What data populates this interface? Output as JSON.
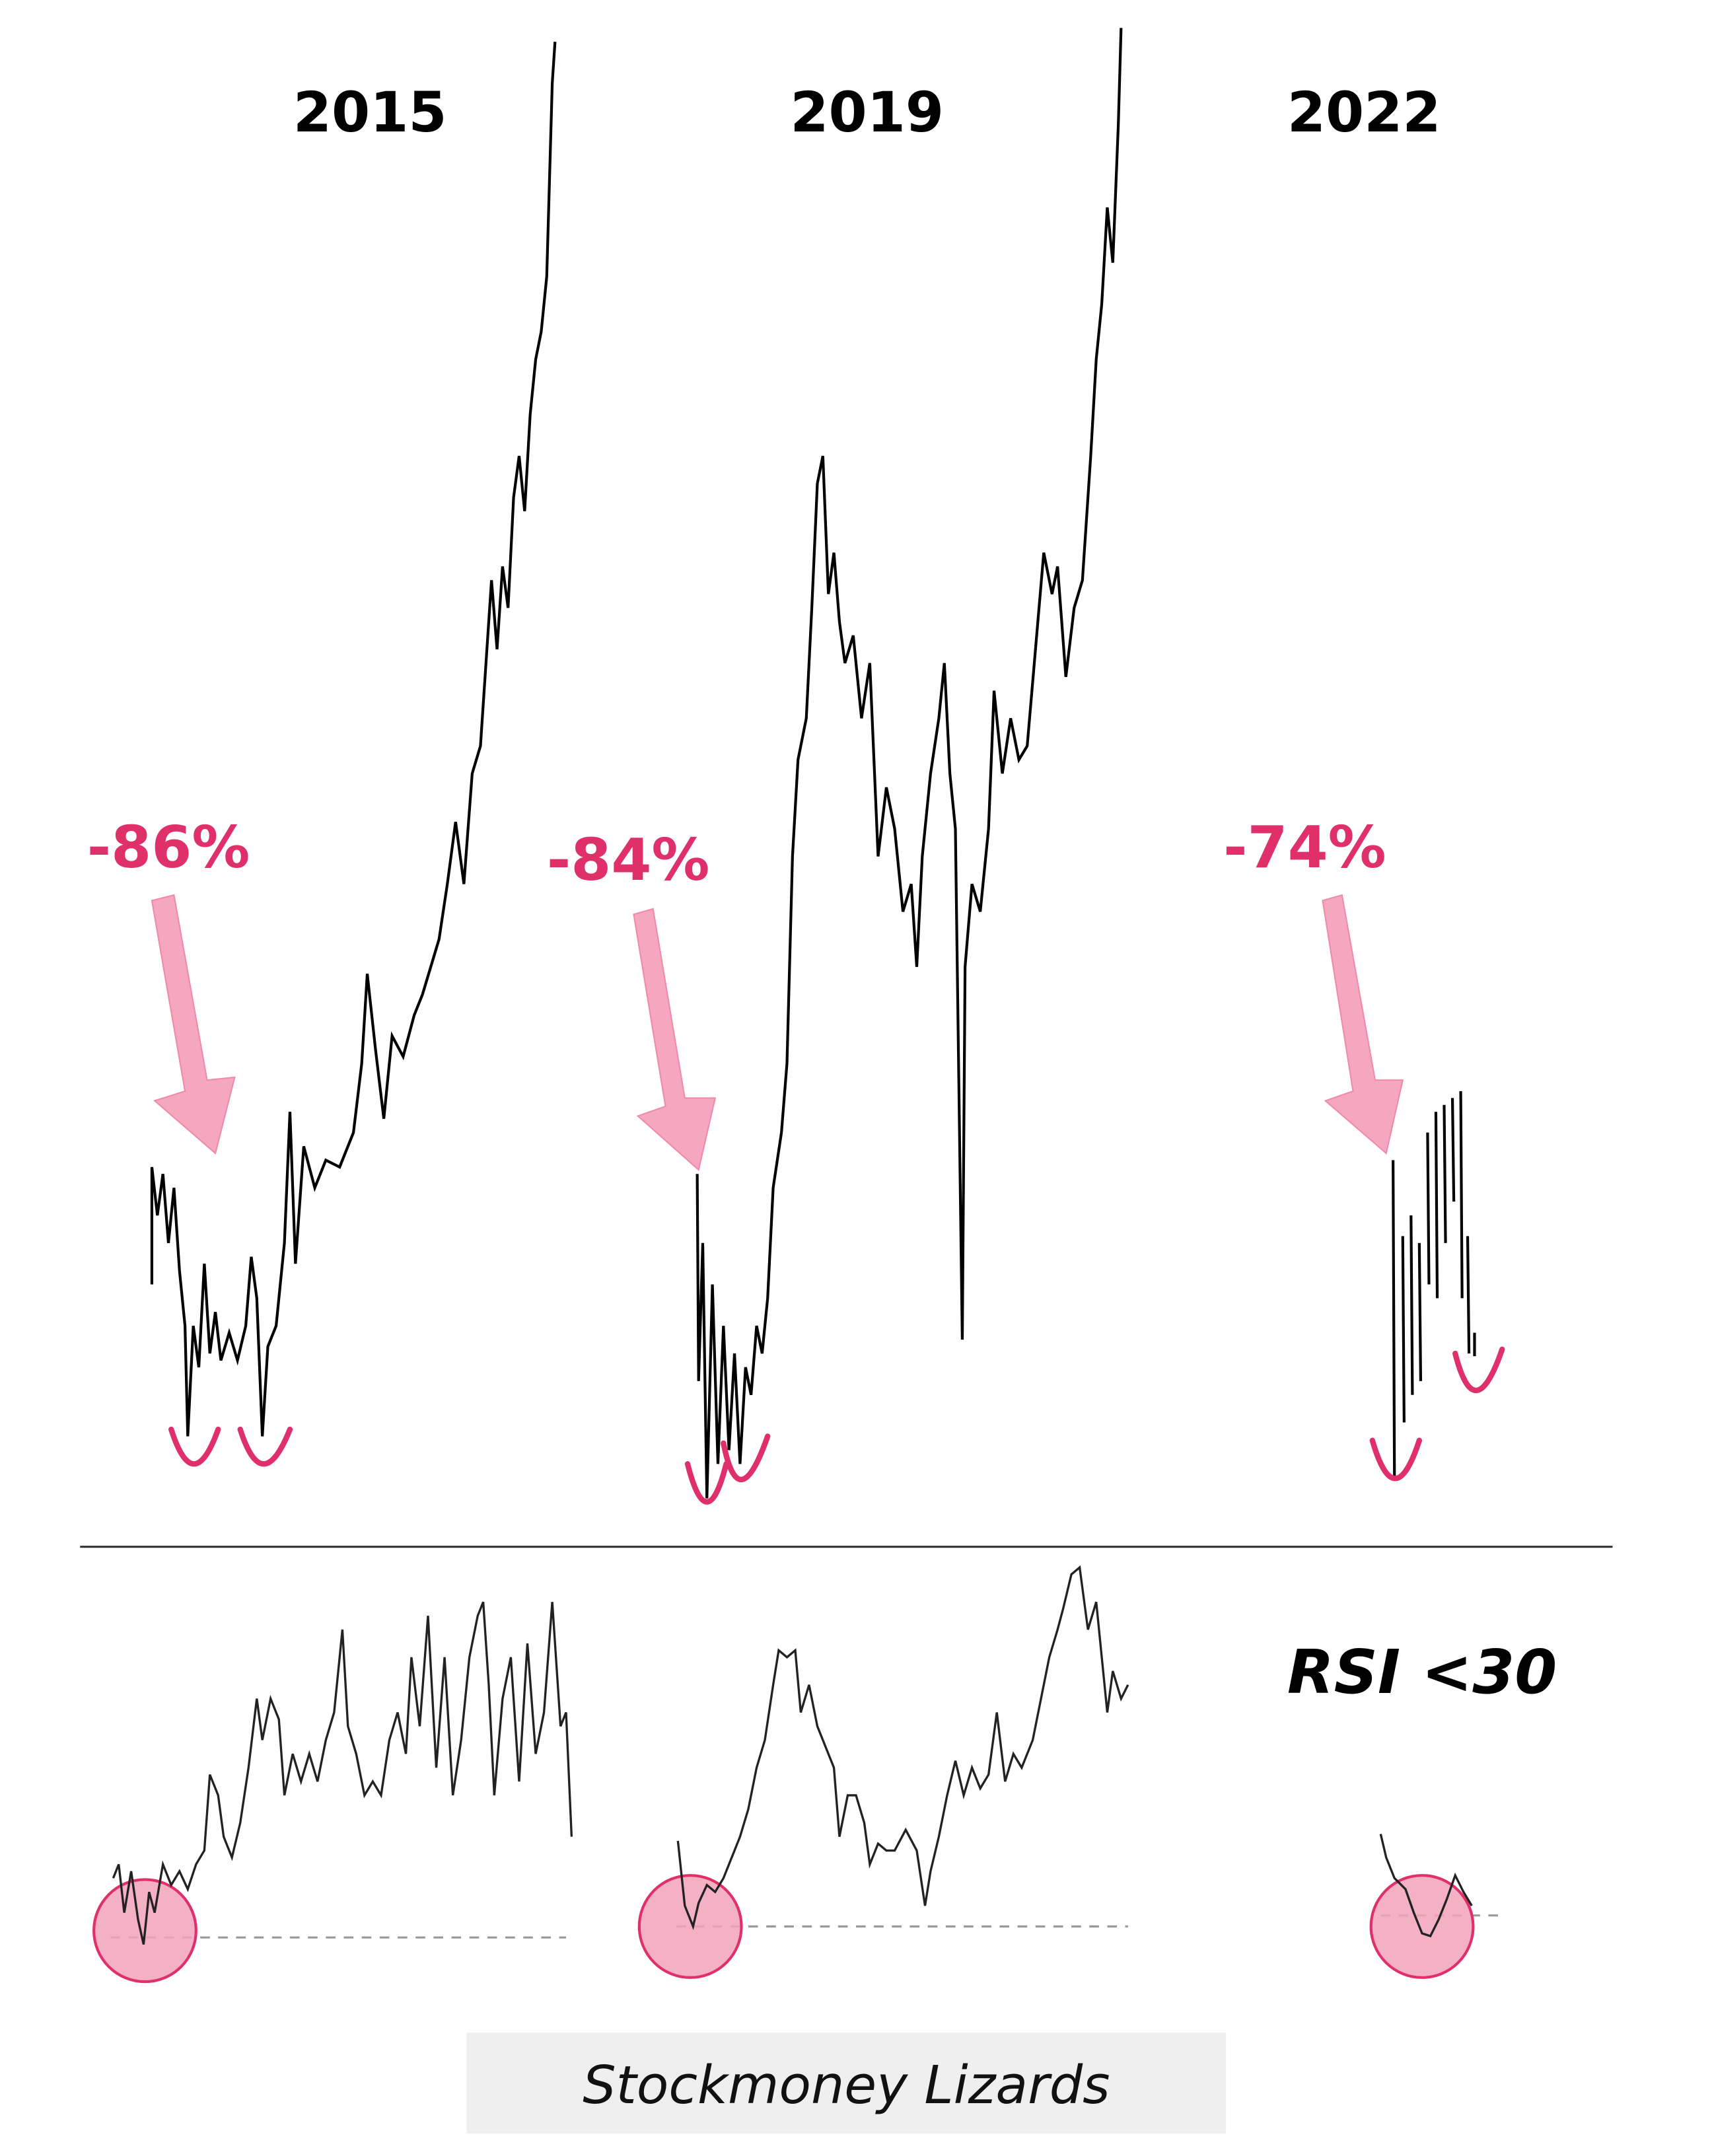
{
  "labels": {
    "years": [
      "2015",
      "2019",
      "2022"
    ],
    "drawdowns": [
      "-86%",
      "-84%",
      "-74%"
    ],
    "rsi": "RSI <30",
    "watermark": "Stockmoney Lizards"
  }
}
